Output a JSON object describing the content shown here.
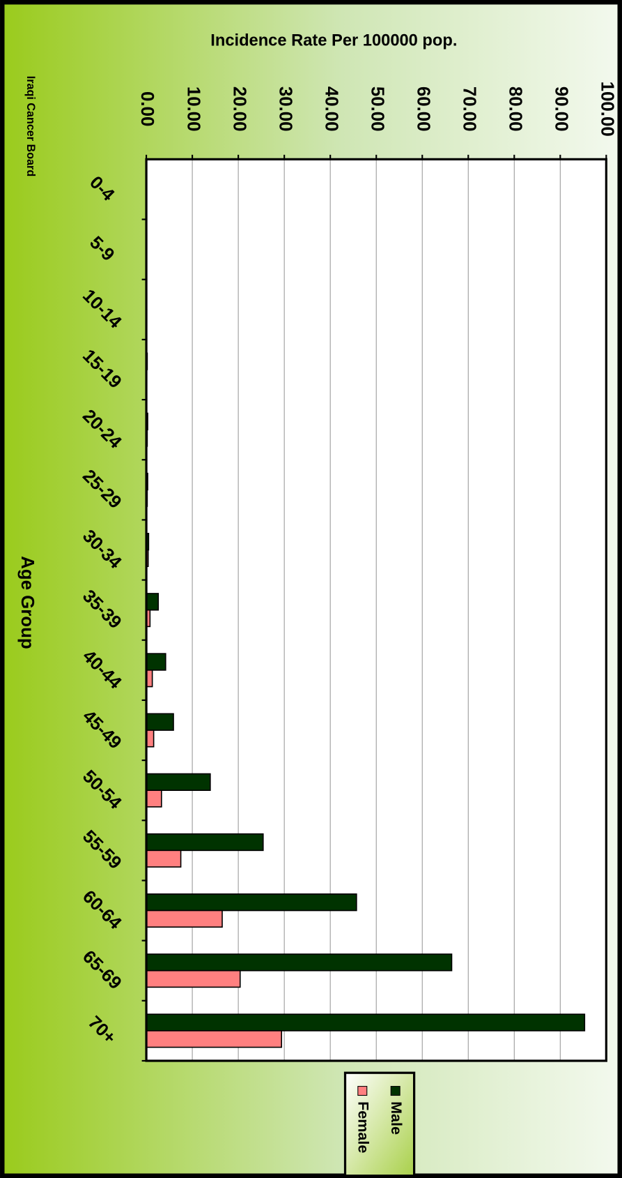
{
  "chart_data": {
    "type": "bar",
    "orientation": "horizontal",
    "title": "Incidence Rate Per 100000 pop.",
    "source": "Iraqi Cancer Board",
    "x_label": "Age Group",
    "categories": [
      "0-4",
      "5-9",
      "10-14",
      "15-19",
      "20-24",
      "25-29",
      "30-34",
      "35-39",
      "40-44",
      "45-49",
      "50-54",
      "55-59",
      "60-64",
      "65-69",
      "70+"
    ],
    "series": [
      {
        "name": "Male",
        "color": "#003300",
        "values": [
          0,
          0.1,
          0.1,
          0.2,
          0.3,
          0.3,
          0.5,
          2.6,
          4.2,
          5.9,
          13.9,
          25.4,
          45.7,
          66.4,
          95.3
        ]
      },
      {
        "name": "Female",
        "color": "#ff8080",
        "values": [
          0,
          0,
          0.1,
          0.1,
          0.2,
          0.2,
          0.4,
          0.8,
          1.3,
          1.6,
          3.3,
          7.5,
          16.5,
          20.4,
          29.4
        ]
      }
    ],
    "ylim": [
      0,
      100
    ],
    "yticks": [
      {
        "value": 0,
        "label": "0.00"
      },
      {
        "value": 10,
        "label": "10.00"
      },
      {
        "value": 20,
        "label": "20.00"
      },
      {
        "value": 30,
        "label": "30.00"
      },
      {
        "value": 40,
        "label": "40.00"
      },
      {
        "value": 50,
        "label": "50.00"
      },
      {
        "value": 60,
        "label": "60.00"
      },
      {
        "value": 70,
        "label": "70.00"
      },
      {
        "value": 80,
        "label": "80.00"
      },
      {
        "value": 90,
        "label": "90.00"
      },
      {
        "value": 100,
        "label": "100.00"
      }
    ],
    "grid": true,
    "legend": "bottom"
  }
}
